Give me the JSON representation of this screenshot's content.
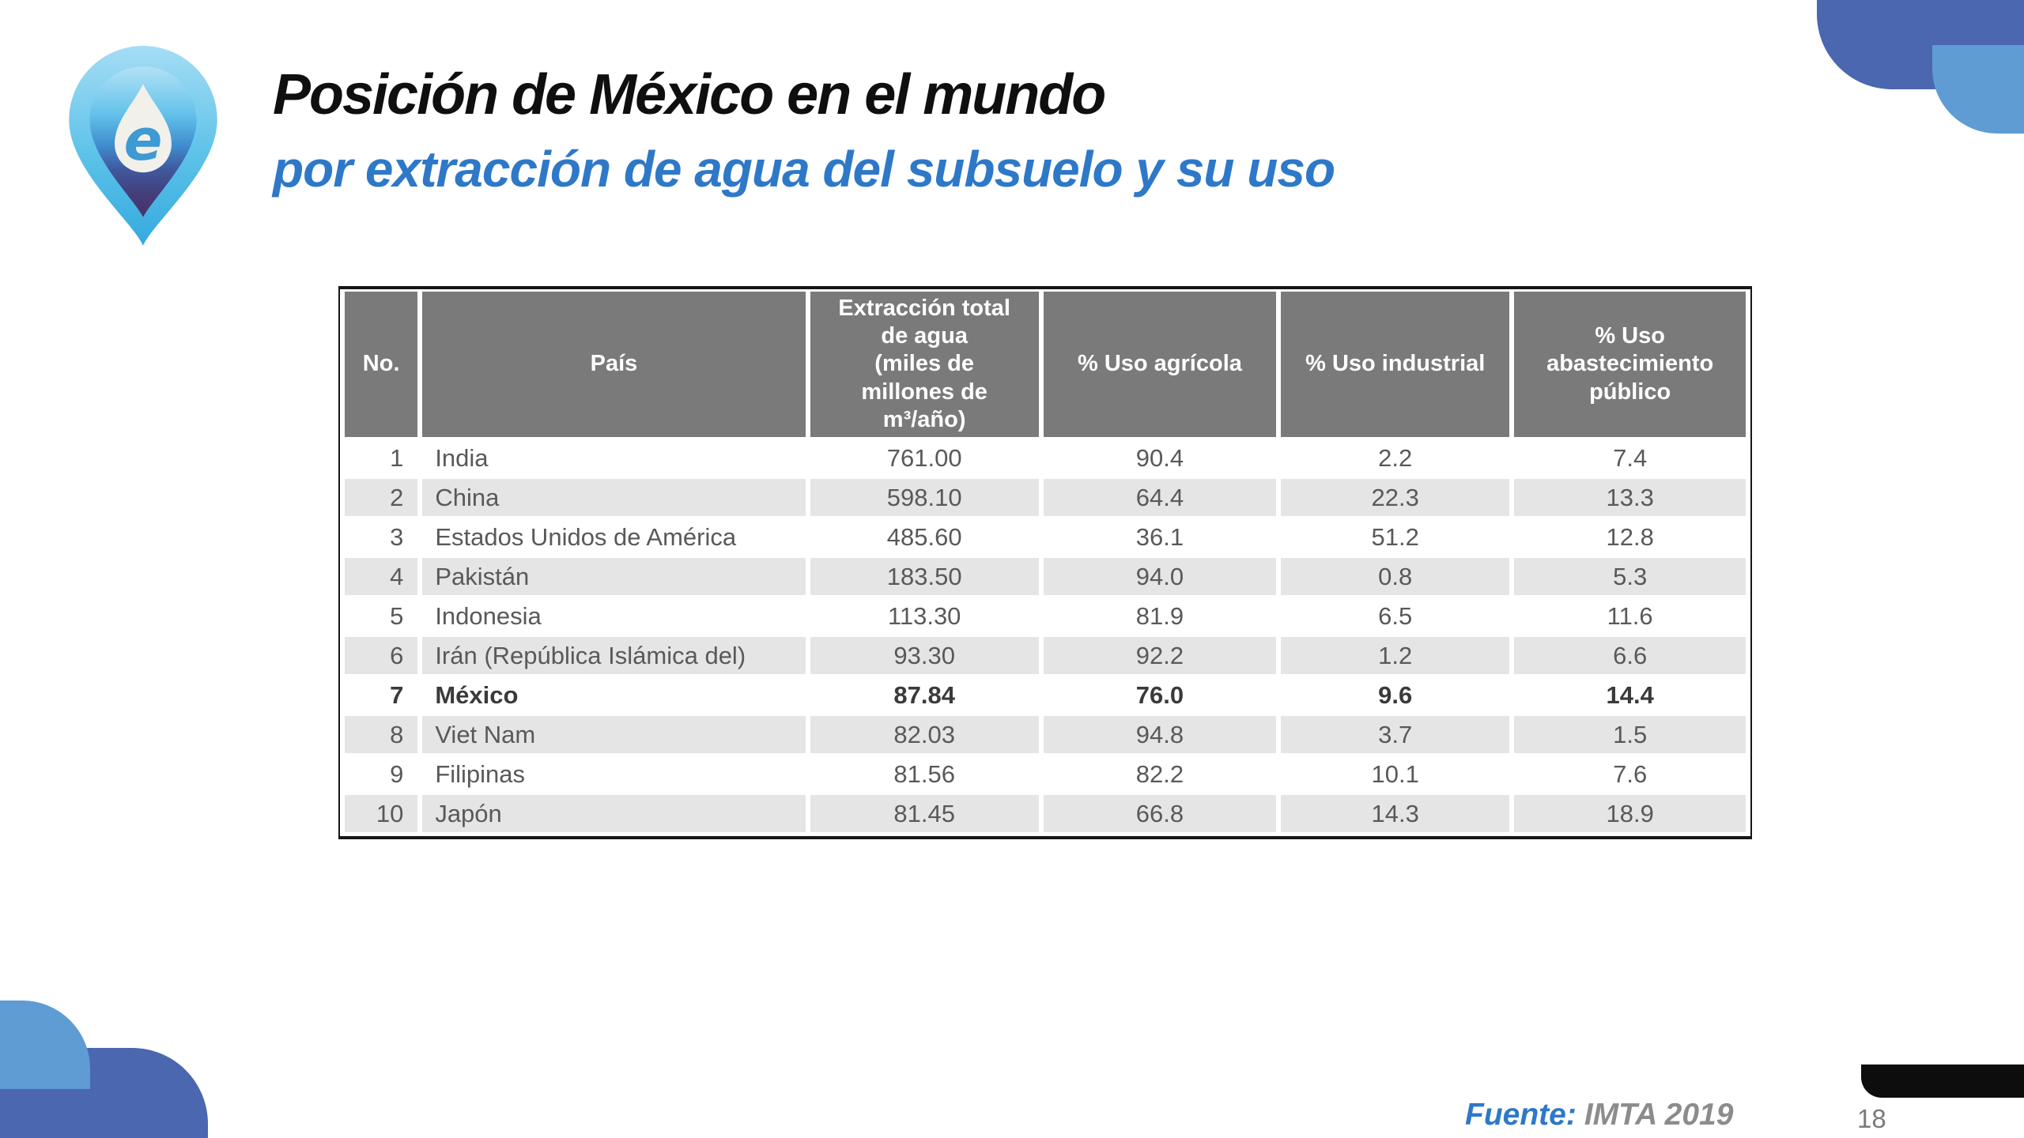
{
  "slide": {
    "title": "Posición de México en el mundo",
    "subtitle": "por extracción de agua del subsuelo y su uso",
    "source_label": "Fuente:",
    "source_value": "IMTA 2019",
    "page_number": "18",
    "logo_letter": "e"
  },
  "colors": {
    "accent_blue": "#2e78c8",
    "corner_dark_blue": "#4a67b0",
    "corner_light_blue": "#5f9cd3",
    "table_header_gray": "#7a7a7a",
    "row_stripe_gray": "#e5e5e5",
    "body_text_gray": "#595959",
    "footer_bar_black": "#0d0d0d"
  },
  "table": {
    "columns": [
      "No.",
      "País",
      "Extracción total\nde agua\n(miles de\nmillones de\nm³/año)",
      "% Uso agrícola",
      "% Uso industrial",
      "% Uso\nabastecimiento\npúblico"
    ],
    "row_keys": [
      "no",
      "pais",
      "extraccion",
      "agricola",
      "industrial",
      "publico"
    ],
    "rows": [
      {
        "no": "1",
        "pais": "India",
        "extraccion": "761.00",
        "agricola": "90.4",
        "industrial": "2.2",
        "publico": "7.4",
        "bold": false
      },
      {
        "no": "2",
        "pais": "China",
        "extraccion": "598.10",
        "agricola": "64.4",
        "industrial": "22.3",
        "publico": "13.3",
        "bold": false
      },
      {
        "no": "3",
        "pais": "Estados Unidos de América",
        "extraccion": "485.60",
        "agricola": "36.1",
        "industrial": "51.2",
        "publico": "12.8",
        "bold": false
      },
      {
        "no": "4",
        "pais": "Pakistán",
        "extraccion": "183.50",
        "agricola": "94.0",
        "industrial": "0.8",
        "publico": "5.3",
        "bold": false
      },
      {
        "no": "5",
        "pais": "Indonesia",
        "extraccion": "113.30",
        "agricola": "81.9",
        "industrial": "6.5",
        "publico": "11.6",
        "bold": false
      },
      {
        "no": "6",
        "pais": "Irán (República Islámica del)",
        "extraccion": "93.30",
        "agricola": "92.2",
        "industrial": "1.2",
        "publico": "6.6",
        "bold": false
      },
      {
        "no": "7",
        "pais": "México",
        "extraccion": "87.84",
        "agricola": "76.0",
        "industrial": "9.6",
        "publico": "14.4",
        "bold": true
      },
      {
        "no": "8",
        "pais": "Viet Nam",
        "extraccion": "82.03",
        "agricola": "94.8",
        "industrial": "3.7",
        "publico": "1.5",
        "bold": false
      },
      {
        "no": "9",
        "pais": "Filipinas",
        "extraccion": "81.56",
        "agricola": "82.2",
        "industrial": "10.1",
        "publico": "7.6",
        "bold": false
      },
      {
        "no": "10",
        "pais": "Japón",
        "extraccion": "81.45",
        "agricola": "66.8",
        "industrial": "14.3",
        "publico": "18.9",
        "bold": false
      }
    ]
  }
}
